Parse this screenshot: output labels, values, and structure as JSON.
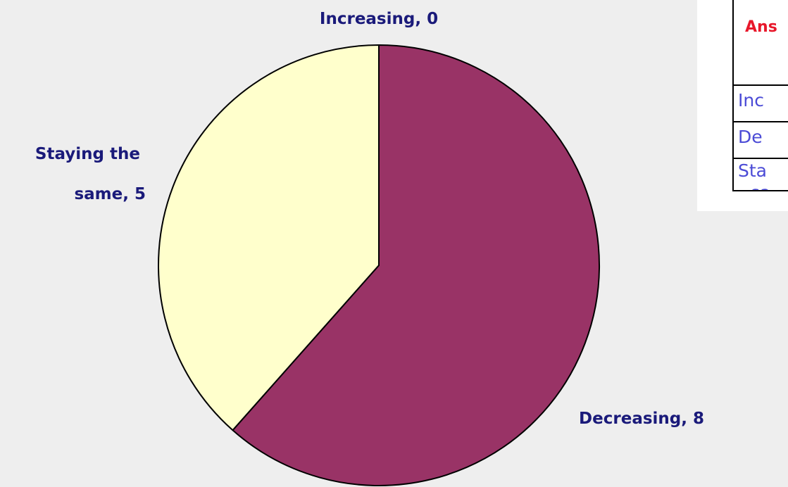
{
  "chart_data": {
    "type": "pie",
    "slices": [
      {
        "label": "Increasing",
        "value": 0,
        "color": "#f9f7c8"
      },
      {
        "label": "Decreasing",
        "value": 8,
        "color": "#993366"
      },
      {
        "label": "Staying the same",
        "value": 5,
        "color": "#ffffcc"
      }
    ],
    "data_labels": [
      {
        "lines": [
          "Increasing, 0"
        ]
      },
      {
        "lines": [
          "Decreasing, 8"
        ]
      },
      {
        "lines": [
          "Staying the",
          "same, 5"
        ]
      }
    ]
  },
  "table": {
    "header": "Ans",
    "rows": [
      {
        "lines": [
          "Inc"
        ]
      },
      {
        "lines": [
          "De"
        ]
      },
      {
        "lines": [
          "Sta",
          "sa"
        ]
      }
    ]
  },
  "colors": {
    "background": "#eeeeee",
    "label_text": "#1a1a7a",
    "table_header": "#e8182b",
    "table_text": "#4b4bd6"
  }
}
